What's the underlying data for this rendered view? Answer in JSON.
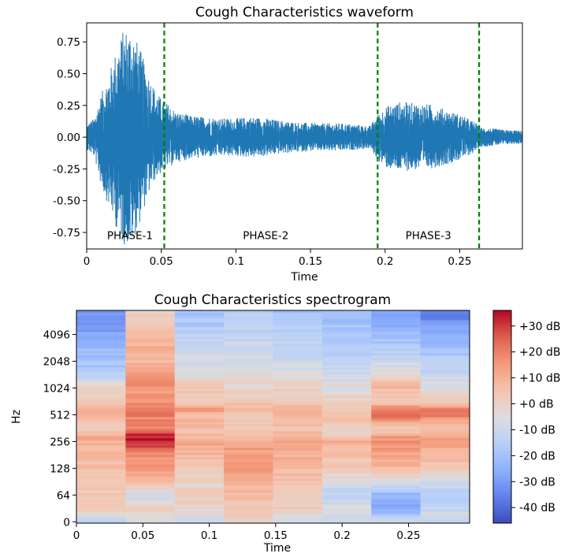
{
  "chart_data": [
    {
      "type": "line",
      "title": "Cough Characteristics waveform",
      "xlabel": "Time",
      "ylabel": "",
      "xlim": [
        0,
        0.292
      ],
      "ylim": [
        -0.88,
        0.9
      ],
      "x_ticks": [
        "0",
        "0.05",
        "0.1",
        "0.15",
        "0.2",
        "0.25"
      ],
      "x_tick_values": [
        0,
        0.05,
        0.1,
        0.15,
        0.2,
        0.25
      ],
      "y_ticks": [
        "0.75",
        "0.50",
        "0.25",
        "0.00",
        "-0.25",
        "-0.50",
        "-0.75"
      ],
      "y_tick_values": [
        0.75,
        0.5,
        0.25,
        0.0,
        -0.25,
        -0.5,
        -0.75
      ],
      "series_color": "#1f77b4",
      "envelope": {
        "x": [
          0,
          0.005,
          0.01,
          0.015,
          0.02,
          0.025,
          0.03,
          0.035,
          0.04,
          0.045,
          0.05,
          0.052,
          0.055,
          0.06,
          0.07,
          0.08,
          0.09,
          0.1,
          0.11,
          0.12,
          0.13,
          0.14,
          0.15,
          0.16,
          0.17,
          0.18,
          0.19,
          0.195,
          0.2,
          0.21,
          0.22,
          0.23,
          0.24,
          0.25,
          0.26,
          0.263,
          0.27,
          0.28,
          0.292
        ],
        "upper": [
          0.1,
          0.15,
          0.35,
          0.5,
          0.7,
          0.86,
          0.87,
          0.72,
          0.55,
          0.4,
          0.3,
          0.28,
          0.26,
          0.2,
          0.17,
          0.16,
          0.15,
          0.15,
          0.16,
          0.15,
          0.13,
          0.12,
          0.11,
          0.11,
          0.11,
          0.1,
          0.09,
          0.18,
          0.24,
          0.28,
          0.27,
          0.26,
          0.22,
          0.18,
          0.12,
          0.08,
          0.07,
          0.06,
          0.05
        ],
        "lower": [
          -0.1,
          -0.15,
          -0.4,
          -0.55,
          -0.72,
          -0.85,
          -0.85,
          -0.7,
          -0.5,
          -0.35,
          -0.28,
          -0.26,
          -0.24,
          -0.2,
          -0.17,
          -0.16,
          -0.15,
          -0.15,
          -0.16,
          -0.15,
          -0.13,
          -0.12,
          -0.11,
          -0.11,
          -0.11,
          -0.1,
          -0.09,
          -0.18,
          -0.24,
          -0.27,
          -0.26,
          -0.25,
          -0.22,
          -0.18,
          -0.12,
          -0.08,
          -0.07,
          -0.06,
          -0.05
        ]
      },
      "vlines": {
        "x": [
          0.052,
          0.195,
          0.263
        ],
        "color": "#008000",
        "style": "dashed"
      },
      "annotations": [
        {
          "text": "PHASE-1",
          "x": 0.029,
          "y": -0.77
        },
        {
          "text": "PHASE-2",
          "x": 0.12,
          "y": -0.77
        },
        {
          "text": "PHASE-3",
          "x": 0.229,
          "y": -0.77
        }
      ]
    },
    {
      "type": "heatmap",
      "title": "Cough Characteristics spectrogram",
      "xlabel": "Time",
      "ylabel": "Hz",
      "xlim": [
        0,
        0.296
      ],
      "x_ticks": [
        "0",
        "0.05",
        "0.1",
        "0.15",
        "0.2",
        "0.25"
      ],
      "x_tick_values": [
        0,
        0.05,
        0.1,
        0.15,
        0.2,
        0.25
      ],
      "y_scale": "log2",
      "y_range_octaves": [
        -0.05,
        7.9
      ],
      "y_ticks": [
        "4096",
        "2048",
        "1024",
        "512",
        "256",
        "128",
        "64",
        "0"
      ],
      "y_tick_octaves": [
        7,
        6,
        5,
        4,
        3,
        2,
        1,
        0
      ],
      "time_frames": [
        0,
        0.037,
        0.074,
        0.111,
        0.148,
        0.185,
        0.222,
        0.259,
        0.296
      ],
      "colormap": "coolwarm",
      "vmin_db": -46,
      "vmax_db": 36,
      "colorbar_ticks": [
        "+30 dB",
        "+20 dB",
        "+10 dB",
        "+0 dB",
        "-10 dB",
        "-20 dB",
        "-30 dB",
        "-40 dB"
      ],
      "colorbar_tick_values": [
        30,
        20,
        10,
        0,
        -10,
        -20,
        -30,
        -40
      ],
      "band_profile": {
        "octave": [
          0,
          0.5,
          1,
          1.5,
          2,
          2.5,
          3,
          3.2,
          3.5,
          4,
          4.2,
          4.5,
          5,
          5.5,
          6,
          6.5,
          7,
          7.5,
          7.9
        ],
        "frames": [
          [
            -12,
            2,
            2,
            5,
            6,
            8,
            10,
            12,
            2,
            8,
            12,
            4,
            0,
            -15,
            -20,
            -22,
            -28,
            -32,
            -30
          ],
          [
            -10,
            4,
            -10,
            8,
            14,
            18,
            32,
            34,
            18,
            20,
            24,
            15,
            16,
            14,
            8,
            10,
            6,
            4,
            0
          ],
          [
            -10,
            0,
            0,
            0,
            4,
            8,
            12,
            8,
            6,
            8,
            14,
            4,
            4,
            -6,
            -8,
            -10,
            -14,
            -18,
            -20
          ],
          [
            -2,
            4,
            6,
            12,
            14,
            14,
            12,
            6,
            2,
            6,
            10,
            2,
            0,
            -4,
            -6,
            -10,
            -12,
            -14,
            -16
          ],
          [
            -8,
            2,
            4,
            6,
            8,
            10,
            12,
            10,
            4,
            10,
            12,
            4,
            0,
            -6,
            -10,
            -12,
            -14,
            -16,
            -20
          ],
          [
            -10,
            -4,
            -14,
            -6,
            2,
            6,
            10,
            4,
            2,
            6,
            4,
            0,
            -4,
            -10,
            -14,
            -16,
            -18,
            -20,
            -22
          ],
          [
            -8,
            -26,
            -24,
            -4,
            8,
            12,
            18,
            14,
            2,
            26,
            22,
            2,
            8,
            -2,
            -10,
            -16,
            -22,
            -26,
            -30
          ],
          [
            -12,
            -10,
            -16,
            -8,
            4,
            8,
            14,
            12,
            4,
            20,
            22,
            0,
            -4,
            -12,
            -16,
            -20,
            -26,
            -32,
            -40
          ]
        ]
      }
    }
  ]
}
